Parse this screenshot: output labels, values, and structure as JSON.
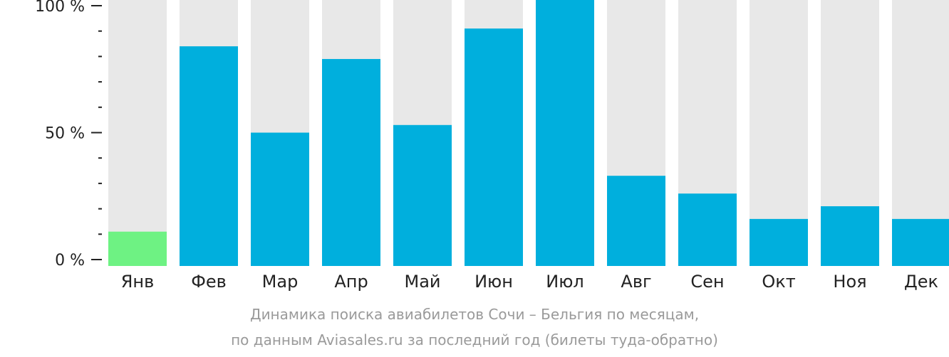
{
  "chart_data": {
    "type": "bar",
    "categories": [
      "Янв",
      "Фев",
      "Мар",
      "Апр",
      "Май",
      "Июн",
      "Июл",
      "Авг",
      "Сен",
      "Окт",
      "Ноя",
      "Дек"
    ],
    "values": [
      11,
      84,
      50,
      79,
      53,
      91,
      100,
      33,
      26,
      16,
      21,
      16
    ],
    "ylim": [
      0,
      100
    ],
    "ytick_labels": [
      "0 %",
      "50 %",
      "100 %"
    ],
    "ytick_values": [
      0,
      50,
      100
    ],
    "minor_ticks": [
      10,
      20,
      30,
      40,
      60,
      70,
      80,
      90
    ],
    "highlight_index": 0,
    "colors": {
      "bar": "#00afdd",
      "highlight": "#6ef283",
      "background_bar": "#e8e8e8",
      "axis": "#222222"
    }
  },
  "caption": {
    "line1": "Динамика поиска авиабилетов Сочи – Бельгия по месяцам,",
    "line2": "по данным Aviasales.ru за последний год (билеты туда-обратно)"
  }
}
